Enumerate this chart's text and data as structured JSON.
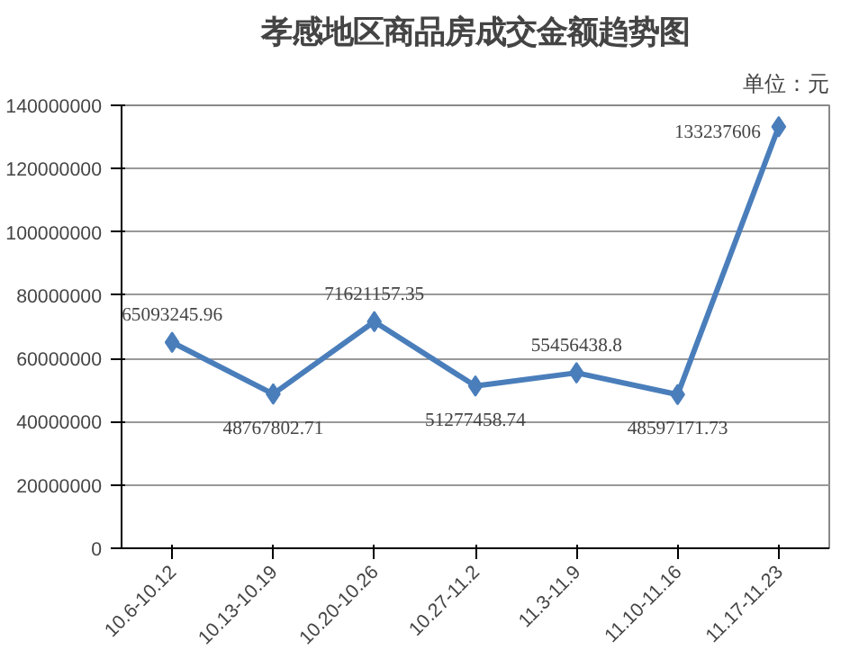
{
  "chart_data": {
    "type": "line",
    "title": "孝感地区商品房成交金额趋势图",
    "annotations": [
      "单位：元"
    ],
    "categories": [
      "10.6-10.12",
      "10.13-10.19",
      "10.20-10.26",
      "10.27-11.2",
      "11.3-11.9",
      "11.10-11.16",
      "11.17-11.23"
    ],
    "series": [
      {
        "color": "#4a7ebb",
        "values": [
          65093245.96,
          48767802.71,
          71621157.35,
          51277458.74,
          55456438.8,
          48597171.73,
          133237606
        ]
      }
    ],
    "ylim": [
      0,
      140000000
    ],
    "yticks": [
      0,
      20000000,
      40000000,
      60000000,
      80000000,
      100000000,
      120000000,
      140000000
    ],
    "grid": "y",
    "marker": "diamond",
    "line_style": "solid",
    "data_labels": true
  }
}
